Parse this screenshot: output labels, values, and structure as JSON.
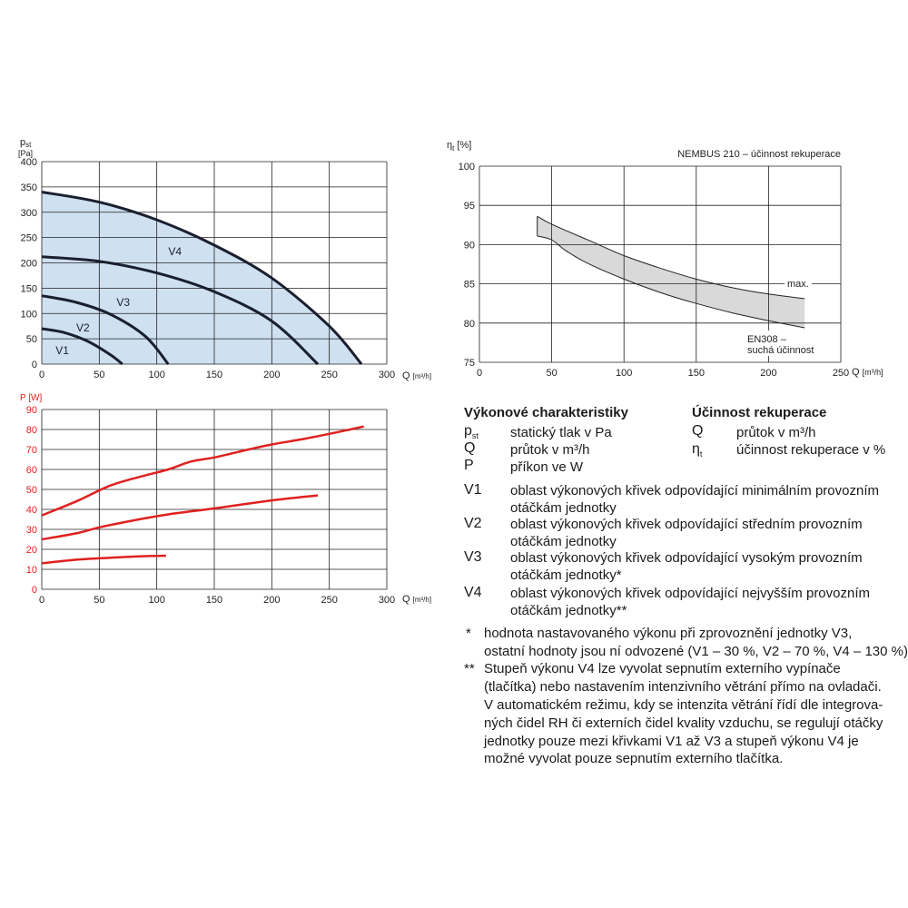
{
  "chart_data": [
    {
      "type": "area",
      "ylabel_main": "p",
      "ylabel_sub": "st",
      "yunit": "[Pa]",
      "xlabel": "Q",
      "xunit": "[m³/h]",
      "xlim": [
        0,
        300
      ],
      "ylim": [
        0,
        400
      ],
      "xticks": [
        0,
        50,
        100,
        150,
        200,
        250,
        300
      ],
      "yticks": [
        0,
        50,
        100,
        150,
        200,
        250,
        300,
        350,
        400
      ],
      "grid": true,
      "series": [
        {
          "name": "V1",
          "x": [
            0,
            20,
            40,
            60,
            70
          ],
          "y": [
            70,
            62,
            45,
            18,
            0
          ]
        },
        {
          "name": "V2",
          "x": [
            0,
            30,
            60,
            90,
            110
          ],
          "y": [
            135,
            122,
            98,
            55,
            0
          ]
        },
        {
          "name": "V3",
          "x": [
            0,
            50,
            100,
            150,
            200,
            240
          ],
          "y": [
            212,
            203,
            180,
            143,
            85,
            0
          ]
        },
        {
          "name": "V4",
          "x": [
            0,
            50,
            100,
            150,
            200,
            250,
            278
          ],
          "y": [
            340,
            320,
            285,
            235,
            170,
            75,
            0
          ]
        }
      ],
      "fill_color": "#cfe0f1",
      "line_color": "#1a1f2e"
    },
    {
      "type": "area",
      "title": "NEMBUS 210 – účinnost rekuperace",
      "ylabel_main": "η",
      "ylabel_sub": "t",
      "yunit": "[%]",
      "xlabel": "Q",
      "xunit": "[m³/h]",
      "xlim": [
        0,
        250
      ],
      "ylim": [
        75,
        100
      ],
      "xticks": [
        0,
        50,
        100,
        150,
        200,
        250
      ],
      "yticks": [
        75,
        80,
        85,
        90,
        95,
        100
      ],
      "grid": true,
      "series": [
        {
          "name": "max.",
          "x": [
            40,
            50,
            75,
            100,
            125,
            150,
            175,
            200,
            225
          ],
          "y": [
            93.6,
            92.6,
            90.6,
            88.6,
            87.0,
            85.6,
            84.5,
            83.7,
            83.1
          ]
        },
        {
          "name": "EN308 – suchá účinnost",
          "x": [
            40,
            50,
            60,
            75,
            100,
            125,
            150,
            175,
            200,
            225
          ],
          "y": [
            91.1,
            90.6,
            89.2,
            87.6,
            85.6,
            83.9,
            82.5,
            81.3,
            80.3,
            79.4
          ]
        }
      ],
      "annotations": [
        "max.",
        "EN308 –",
        "suchá účinnost"
      ],
      "fill_color": "#d9d9d9"
    },
    {
      "type": "line",
      "ylabel": "P [W]",
      "xlabel": "Q",
      "xunit": "[m³/h]",
      "xlim": [
        0,
        300
      ],
      "ylim": [
        0,
        90
      ],
      "xticks": [
        0,
        50,
        100,
        150,
        200,
        250,
        300
      ],
      "yticks": [
        0,
        10,
        20,
        30,
        40,
        50,
        60,
        70,
        80,
        90
      ],
      "grid": true,
      "series": [
        {
          "x": [
            0,
            30,
            60,
            90,
            110,
            130,
            150,
            180,
            200,
            230,
            260,
            280
          ],
          "y": [
            37,
            44,
            52,
            57,
            60,
            64,
            66,
            70,
            72.5,
            75.5,
            79,
            81.5
          ]
        },
        {
          "x": [
            0,
            30,
            50,
            80,
            110,
            150,
            200,
            240
          ],
          "y": [
            25,
            28,
            31,
            34.5,
            37.5,
            40.5,
            44.5,
            47
          ]
        },
        {
          "x": [
            0,
            30,
            60,
            90,
            108
          ],
          "y": [
            13,
            14.8,
            15.8,
            16.6,
            16.8
          ]
        }
      ],
      "line_color": "#e02020",
      "label_color": "#e02020"
    }
  ],
  "legend": {
    "left_heading": "Výkonové charakteristiky",
    "right_heading": "Účinnost rekuperace",
    "left_items": [
      {
        "symbol": "p",
        "sub": "st",
        "text": "statický tlak v Pa"
      },
      {
        "symbol": "Q",
        "text": "průtok v m³/h"
      },
      {
        "symbol": "P",
        "text": "příkon ve W"
      }
    ],
    "right_items": [
      {
        "symbol": "Q",
        "text": "průtok v m³/h"
      },
      {
        "symbol": "η",
        "sub": "t",
        "text": "účinnost rekuperace v %"
      }
    ],
    "v_items": [
      {
        "symbol": "V1",
        "line1": "oblast výkonových křivek odpovídající minimálním provozním",
        "line2": "otáčkám jednotky"
      },
      {
        "symbol": "V2",
        "line1": "oblast výkonových křivek odpovídající středním provozním",
        "line2": "otáčkám jednotky"
      },
      {
        "symbol": "V3",
        "line1": "oblast výkonových křivek odpovídající vysokým provozním",
        "line2": "otáčkám jednotky*"
      },
      {
        "symbol": "V4",
        "line1": "oblast výkonových křivek odpovídající nejvyšším provozním",
        "line2": "otáčkám jednotky**"
      }
    ],
    "notes": [
      {
        "mark": "*",
        "lines": [
          "hodnota nastavovaného výkonu při zprovoznění jednotky V3,",
          "ostatní hodnoty jsou ní odvozené (V1 – 30 %, V2 – 70 %, V4 – 130 %)"
        ]
      },
      {
        "mark": "**",
        "lines": [
          "Stupeň výkonu V4 lze vyvolat sepnutím externího vypínače",
          "(tlačítka) nebo nastavením intenzivního větrání přímo na ovladači.",
          "V automatickém režimu, kdy se intenzita větrání řídí dle integrova-",
          "ných čidel RH či externích čidel kvality vzduchu, se regulují otáčky",
          "jednotky pouze mezi křivkami V1 až V3 a stupeň výkonu V4 je",
          "možné vyvolat pouze sepnutím externího tlačítka."
        ]
      }
    ]
  }
}
